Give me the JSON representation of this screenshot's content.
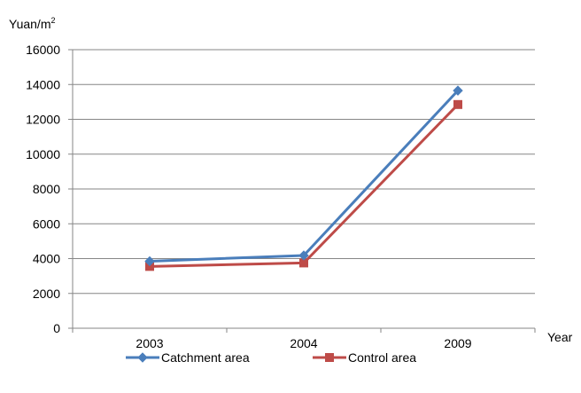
{
  "chart_data": {
    "type": "line",
    "categories": [
      "2003",
      "2004",
      "2009"
    ],
    "series": [
      {
        "name": "Catchment area",
        "values": [
          3850,
          4180,
          13650
        ],
        "color": "#4a7ebb",
        "marker": "diamond"
      },
      {
        "name": "Control area",
        "values": [
          3550,
          3750,
          12850
        ],
        "color": "#be4b48",
        "marker": "square"
      }
    ],
    "ylabel": "Yuan/m",
    "ylabel_superscript": "2",
    "xlabel": "Year",
    "ylim": [
      0,
      16000
    ],
    "yticks": [
      "0",
      "2000",
      "4000",
      "6000",
      "8000",
      "10000",
      "12000",
      "14000",
      "16000"
    ],
    "grid": "horizontal",
    "legend": "bottom"
  }
}
